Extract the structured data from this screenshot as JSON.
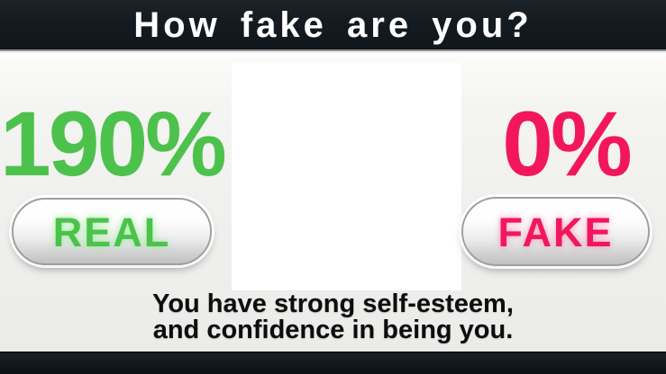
{
  "title_bar": {
    "title": "How fake are you?"
  },
  "results": {
    "real": {
      "percentage": "190%",
      "label": "REAL",
      "color": "#4cc24c"
    },
    "fake": {
      "percentage": "0%",
      "label": "FAKE",
      "color": "#f2175d"
    }
  },
  "caption": {
    "line1": "You have strong self-esteem,",
    "line2": "and confidence in being you."
  },
  "colors": {
    "top_bar": "#141b20",
    "bottom_bar": "#10171c",
    "background": "#f0f0ee",
    "center_panel": "#ffffff",
    "button_face": "#ededed",
    "button_border": "#9f9f9f",
    "real_green": "#4cc24c",
    "fake_pink": "#f2175d",
    "title_text": "#ffffff",
    "caption_text": "#0d0d0d"
  }
}
